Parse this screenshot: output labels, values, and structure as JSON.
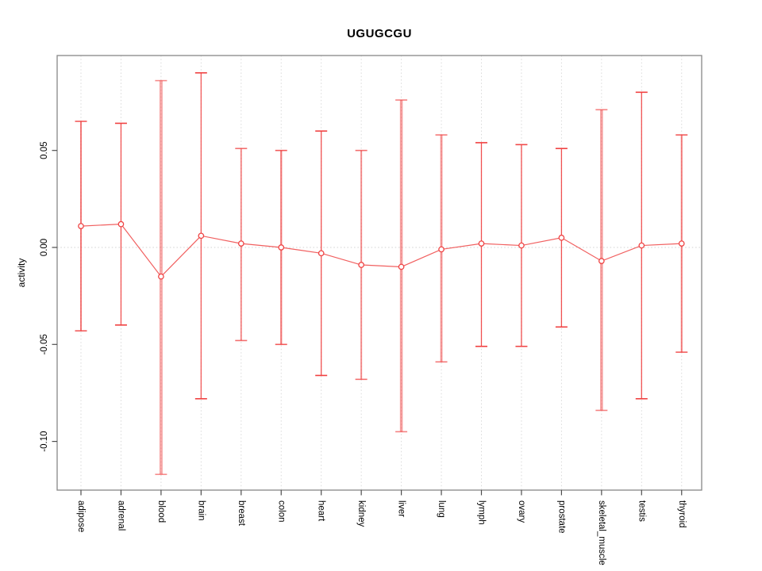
{
  "title": "UGUGCGU",
  "colors": {
    "bar_red": "#f04040",
    "marker_red": "#ef4444",
    "grid_gray": "#d9d9d9",
    "zero_line_gray": "#d0d0d0",
    "panel_border_gray": "#878787",
    "tick_gray": "#4d4d4d",
    "label_black": "#000000"
  },
  "chart_data": {
    "type": "scatter",
    "subtype": "error-bar-plot",
    "title": "UGUGCGU",
    "xlabel": "",
    "ylabel": "activity",
    "ylim": [
      -0.125,
      0.099
    ],
    "yticks": [
      0.05,
      0.0,
      -0.05,
      -0.1
    ],
    "ytick_labels": [
      "0.05",
      "0.00",
      "-0.05",
      "-0.10"
    ],
    "grid": "vertical-dotted-per-category-plus-zero-line",
    "legend_position": "none",
    "categories": [
      "adipose",
      "adrenal",
      "blood",
      "brain",
      "breast",
      "colon",
      "heart",
      "kidney",
      "liver",
      "lung",
      "lymph",
      "ovary",
      "prostate",
      "skeletal_muscle",
      "testis",
      "thyroid"
    ],
    "series": [
      {
        "name": "activity",
        "centers": [
          0.011,
          0.012,
          -0.015,
          0.006,
          0.002,
          0.0,
          -0.003,
          -0.009,
          -0.01,
          -0.001,
          0.002,
          0.001,
          0.005,
          -0.007,
          0.001,
          0.002
        ],
        "upper": [
          0.065,
          0.064,
          0.086,
          0.09,
          0.051,
          0.05,
          0.06,
          0.05,
          0.076,
          0.058,
          0.054,
          0.053,
          0.051,
          0.071,
          0.08,
          0.058
        ],
        "lower": [
          -0.043,
          -0.04,
          -0.117,
          -0.078,
          -0.048,
          -0.05,
          -0.066,
          -0.068,
          -0.095,
          -0.059,
          -0.051,
          -0.051,
          -0.041,
          -0.084,
          -0.078,
          -0.054
        ]
      }
    ],
    "bar_widths": [
      2,
      1.3,
      4,
      1.3,
      2,
      2.2,
      1.3,
      2,
      3.5,
      2.8,
      1.3,
      1.5,
      1.3,
      3.5,
      1.3,
      2
    ],
    "bar_opacity": [
      0.7,
      0.9,
      0.45,
      0.85,
      0.6,
      0.7,
      0.9,
      0.6,
      0.5,
      0.55,
      0.9,
      0.8,
      0.9,
      0.5,
      0.9,
      0.7
    ]
  }
}
